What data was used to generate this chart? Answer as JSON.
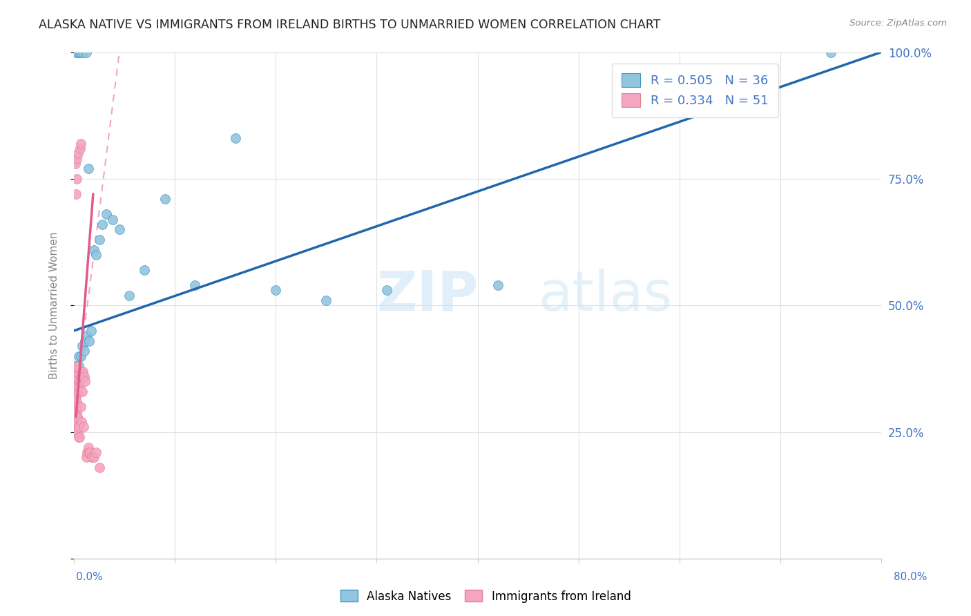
{
  "title": "ALASKA NATIVE VS IMMIGRANTS FROM IRELAND BIRTHS TO UNMARRIED WOMEN CORRELATION CHART",
  "source": "Source: ZipAtlas.com",
  "ylabel": "Births to Unmarried Women",
  "xlim": [
    0.0,
    80.0
  ],
  "ylim": [
    0.0,
    100.0
  ],
  "blue_R": "0.505",
  "blue_N": "36",
  "pink_R": "0.334",
  "pink_N": "51",
  "blue_scatter_color": "#92c5de",
  "blue_edge_color": "#4393c3",
  "pink_scatter_color": "#f4a5c0",
  "pink_edge_color": "#d6604d",
  "trend_blue_color": "#2166ac",
  "trend_pink_color": "#e05a8a",
  "trend_pink_dash_color": "#f4a5c0",
  "legend_blue_label": "Alaska Natives",
  "legend_pink_label": "Immigrants from Ireland",
  "right_axis_color": "#4472c4",
  "label_color": "#888888",
  "grid_color": "#e0e0e0",
  "axis_color": "#cccccc",
  "title_color": "#222222",
  "alaska_x": [
    0.15,
    0.3,
    0.45,
    0.5,
    0.6,
    0.7,
    0.8,
    1.0,
    1.1,
    1.3,
    1.5,
    1.7,
    2.0,
    2.2,
    2.5,
    2.8,
    3.2,
    3.8,
    4.5,
    5.5,
    7.0,
    9.0,
    12.0,
    16.0,
    20.0,
    25.0,
    31.0,
    42.0,
    0.2,
    0.35,
    0.55,
    0.65,
    0.9,
    1.2,
    1.4,
    75.0
  ],
  "alaska_y": [
    38.0,
    36.0,
    40.0,
    38.0,
    37.0,
    40.0,
    42.0,
    41.0,
    43.0,
    44.0,
    43.0,
    45.0,
    61.0,
    60.0,
    63.0,
    66.0,
    68.0,
    67.0,
    65.0,
    52.0,
    57.0,
    71.0,
    54.0,
    83.0,
    53.0,
    51.0,
    53.0,
    54.0,
    100.0,
    100.0,
    100.0,
    100.0,
    100.0,
    100.0,
    77.0,
    100.0
  ],
  "ireland_x": [
    0.05,
    0.08,
    0.1,
    0.12,
    0.13,
    0.15,
    0.17,
    0.18,
    0.2,
    0.22,
    0.23,
    0.25,
    0.27,
    0.28,
    0.3,
    0.32,
    0.35,
    0.37,
    0.4,
    0.42,
    0.45,
    0.48,
    0.5,
    0.52,
    0.55,
    0.6,
    0.65,
    0.7,
    0.75,
    0.8,
    0.85,
    0.9,
    0.95,
    1.0,
    1.1,
    1.2,
    1.3,
    1.4,
    1.5,
    1.6,
    1.8,
    2.0,
    2.2,
    2.5,
    0.14,
    0.19,
    0.24,
    0.29,
    0.38,
    0.6,
    0.7
  ],
  "ireland_y": [
    37.0,
    36.0,
    35.0,
    34.0,
    33.0,
    32.0,
    31.0,
    38.0,
    32.0,
    30.0,
    32.0,
    31.0,
    34.0,
    30.0,
    29.0,
    28.0,
    27.0,
    28.0,
    26.0,
    25.0,
    24.0,
    26.0,
    33.0,
    34.0,
    24.0,
    35.0,
    36.0,
    30.0,
    27.0,
    36.0,
    33.0,
    37.0,
    26.0,
    36.0,
    35.0,
    20.0,
    21.0,
    22.0,
    21.0,
    21.0,
    20.0,
    20.0,
    21.0,
    18.0,
    78.0,
    72.0,
    75.0,
    79.0,
    80.0,
    81.0,
    82.0
  ],
  "blue_trend_x0": 0.0,
  "blue_trend_y0": 45.0,
  "blue_trend_x1": 80.0,
  "blue_trend_y1": 100.0,
  "pink_solid_x0": 0.2,
  "pink_solid_y0": 28.0,
  "pink_solid_x1": 1.9,
  "pink_solid_y1": 72.0,
  "pink_dash_x0": 0.5,
  "pink_dash_y0": 37.0,
  "pink_dash_x1": 4.5,
  "pink_dash_y1": 100.0
}
